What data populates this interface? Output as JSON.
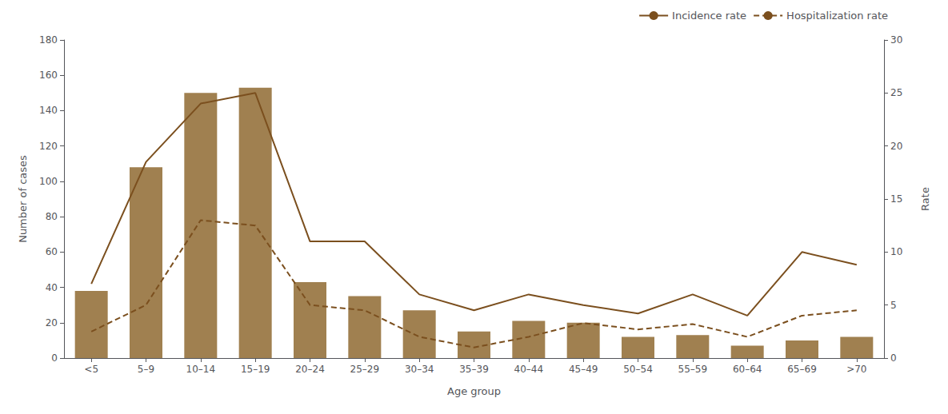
{
  "chart_data": {
    "type": "bar",
    "categories": [
      "<5",
      "5–9",
      "10–14",
      "15–19",
      "20–24",
      "25–29",
      "30–34",
      "35–39",
      "40–44",
      "45–49",
      "50–54",
      "55–59",
      "60–64",
      "65–69",
      ">70"
    ],
    "xlabel": "Age group",
    "ylabel": "Number of cases",
    "y2label": "Rate",
    "ylim": [
      0,
      180
    ],
    "yticks": [
      0,
      20,
      40,
      60,
      80,
      100,
      120,
      140,
      160,
      180
    ],
    "y2lim": [
      0,
      30
    ],
    "y2ticks": [
      0,
      5,
      10,
      15,
      20,
      25,
      30
    ],
    "grid": false,
    "legend": "upper right",
    "series": [
      {
        "type": "bar",
        "color": "#A08050",
        "values": [
          38,
          108,
          150,
          153,
          43,
          35,
          27,
          15,
          21,
          20,
          12,
          13,
          7,
          10,
          12
        ]
      },
      {
        "name": "Incidence rate",
        "type": "line",
        "axis": "y2",
        "color": "#7B4F1E",
        "line_style": "solid",
        "values": [
          7.0,
          18.5,
          24.0,
          25.0,
          11.0,
          11.0,
          6.0,
          4.5,
          6.0,
          5.0,
          4.2,
          6.0,
          4.0,
          10.0,
          8.8
        ]
      },
      {
        "name": "Hospitalization rate",
        "type": "line",
        "axis": "y2",
        "color": "#7B4F1E",
        "line_style": "dashed",
        "values": [
          2.5,
          5.0,
          13.0,
          12.5,
          5.0,
          4.5,
          2.0,
          1.0,
          2.0,
          3.3,
          2.7,
          3.2,
          2.0,
          4.0,
          4.5
        ]
      }
    ]
  }
}
